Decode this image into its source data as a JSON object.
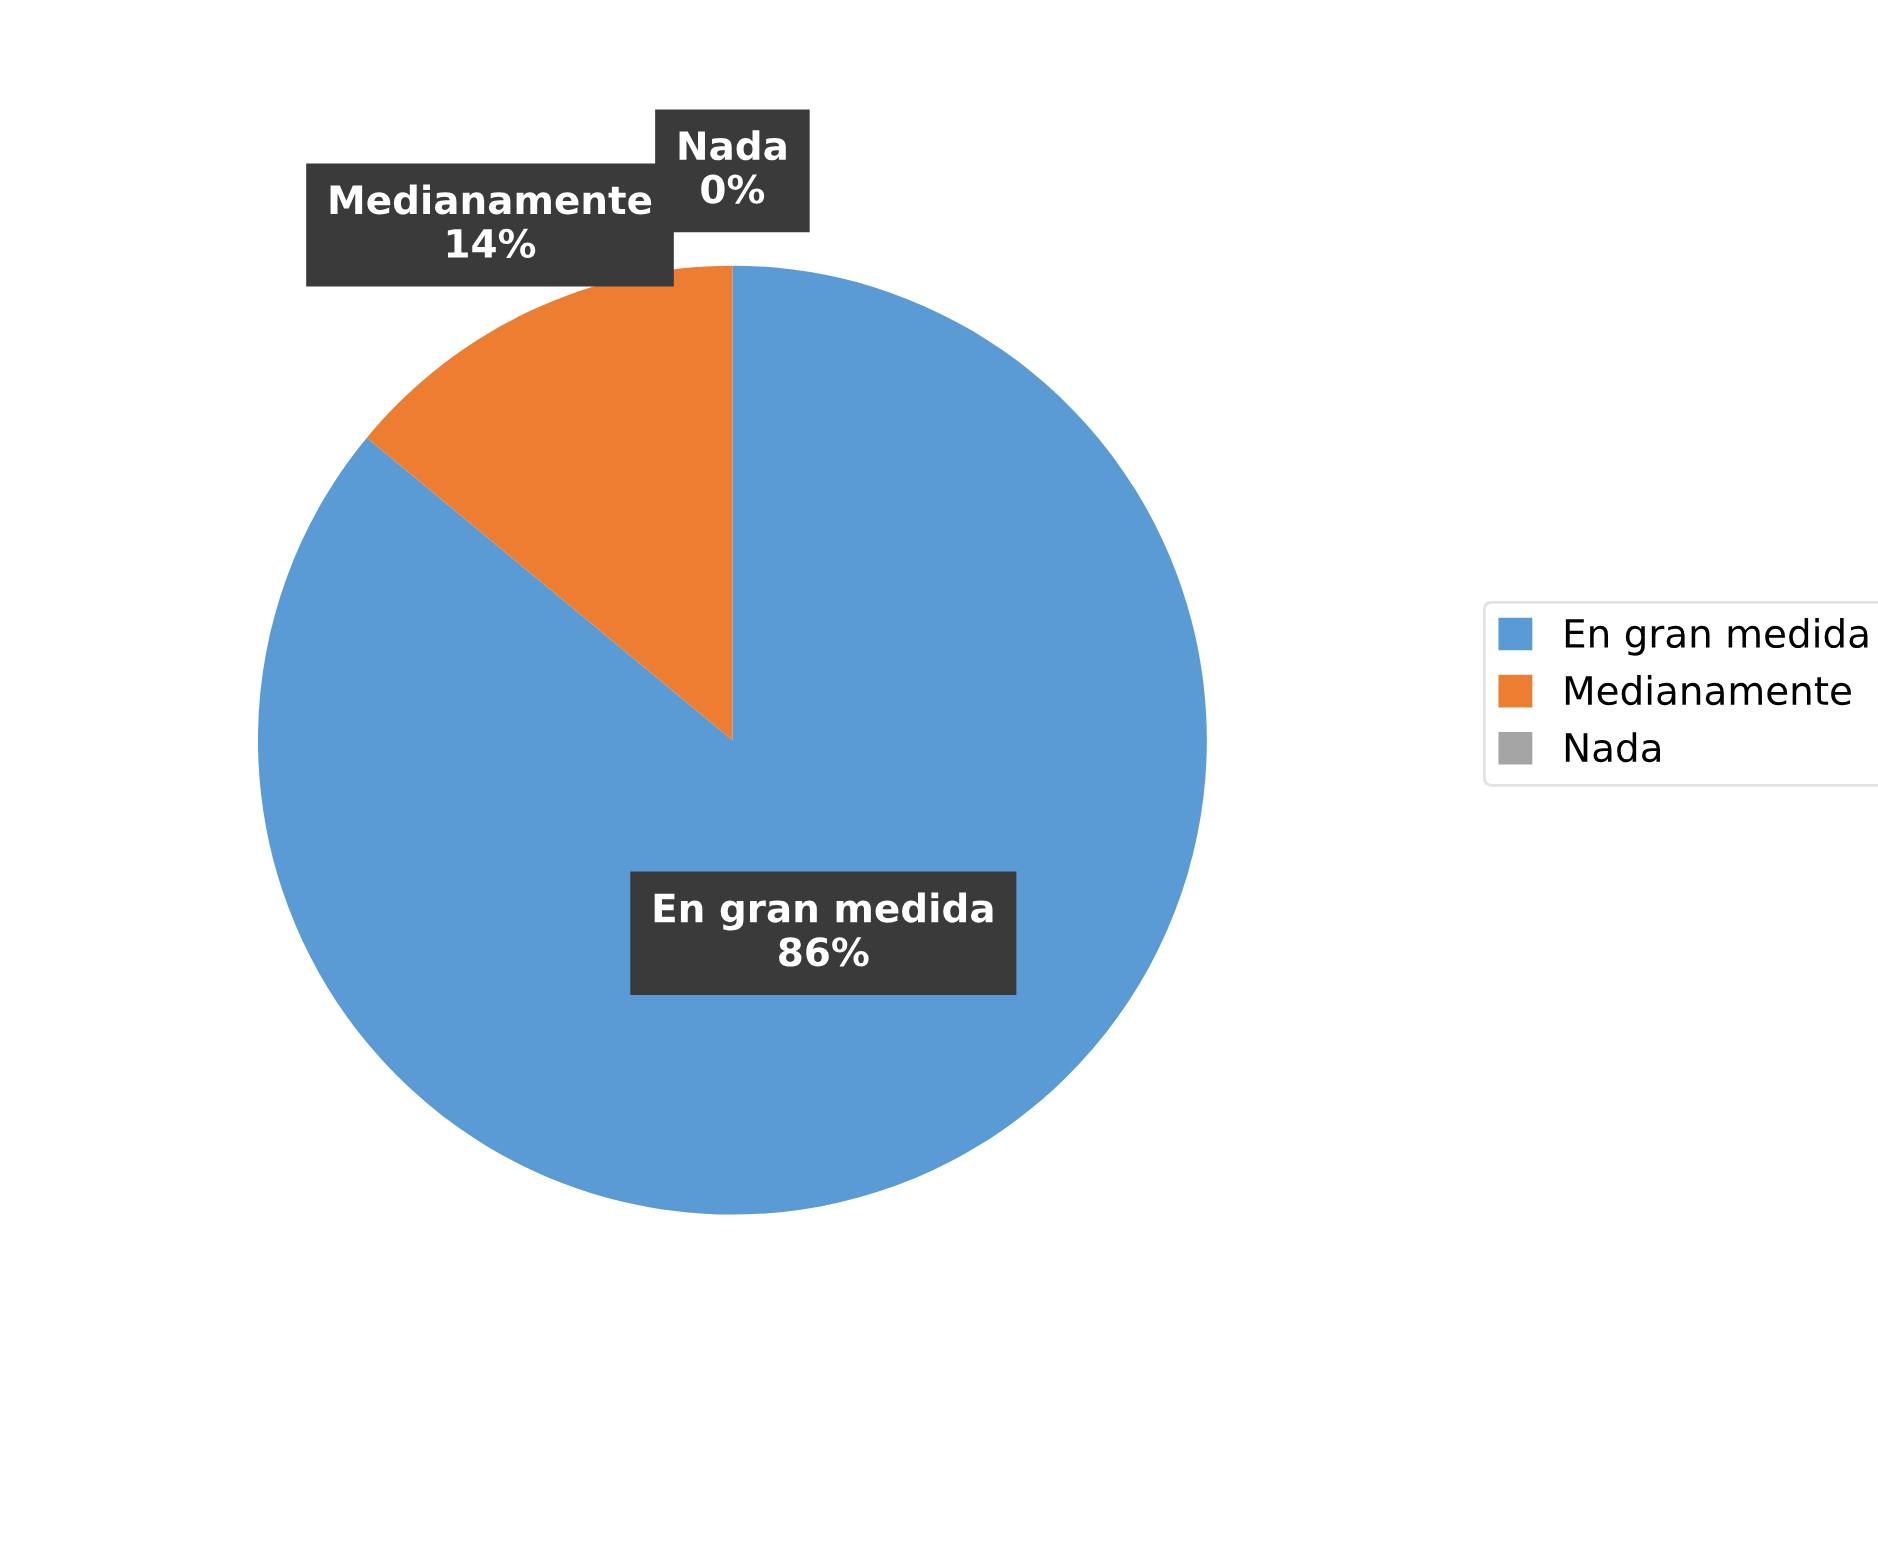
{
  "chart_data": {
    "type": "pie",
    "categories": [
      "En gran medida",
      "Medianamente",
      "Nada"
    ],
    "values": [
      86,
      14,
      0
    ],
    "colors": [
      "#5b9bd5",
      "#ed7d31",
      "#a5a5a5"
    ],
    "value_labels": [
      "86%",
      "14%",
      "0%"
    ],
    "legend": "right"
  }
}
